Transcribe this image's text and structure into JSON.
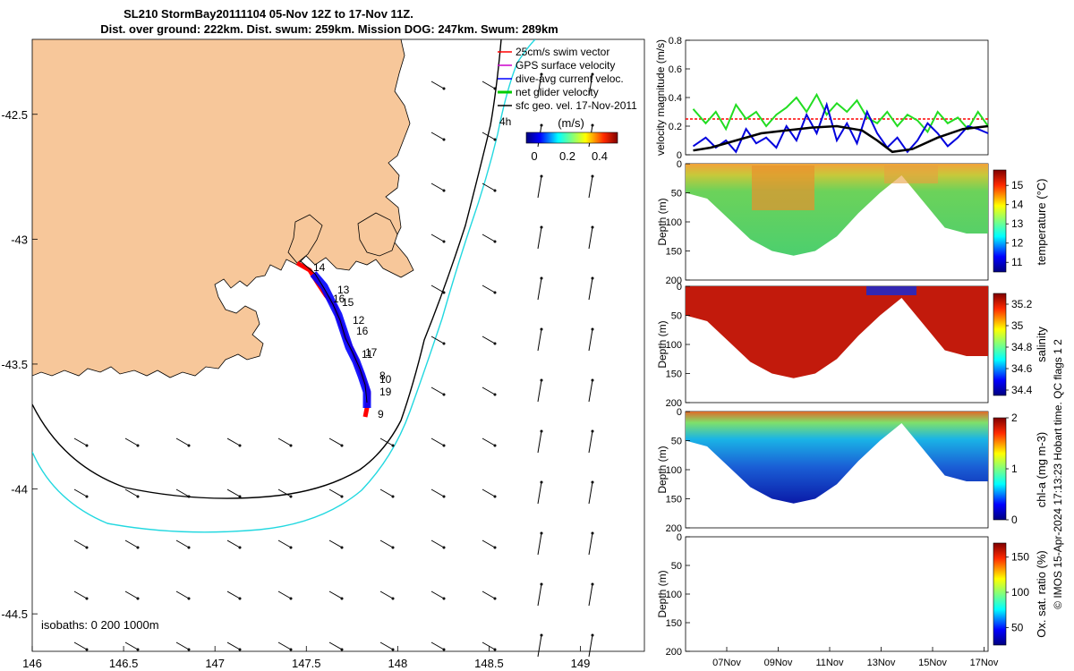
{
  "title": {
    "line1": "SL210 StormBay20111104 05-Nov 12Z to 17-Nov 11Z.",
    "line2": "Dist. over ground: 222km. Dist. swum: 259km. Mission DOG: 247km. Swum: 289km"
  },
  "legend": {
    "items": [
      "25cm/s swim vector",
      "GPS surface velocity",
      "dive-avg current veloc.",
      "net glider velocity",
      "sfc geo. vel. 17-Nov-2011"
    ],
    "colors": [
      "#ff0000",
      "#cc00cc",
      "#0000ff",
      "#00cc00",
      "#000000"
    ],
    "colorbar_unit": "(m/s)",
    "colorbar_ticks": [
      "0",
      "0.2",
      "0.4"
    ],
    "tide_label": "4h",
    "isobath_label": "isobaths: 0   200  1000m"
  },
  "map": {
    "x_ticks": [
      "146",
      "146.5",
      "147",
      "147.5",
      "148",
      "148.5",
      "149"
    ],
    "y_ticks": [
      "-42.5",
      "-43",
      "-43.5",
      "-44",
      "-44.5"
    ],
    "x_range": [
      146,
      149.35
    ],
    "y_range": [
      -44.65,
      -42.2
    ],
    "track_labels": [
      "14",
      "13",
      "15",
      "16",
      "12",
      "16",
      "17",
      "11",
      "8",
      "10",
      "19",
      "9"
    ],
    "land_color": "#f7c79a",
    "isobath_200_color": "#000000",
    "isobath_1000_color": "#22d8e0"
  },
  "chart_data": [
    {
      "type": "line",
      "panel": "velocity",
      "ylabel": "velocity magnitude (m/s)",
      "ylim": [
        0,
        0.8
      ],
      "y_ticks": [
        "0",
        "0.2",
        "0.4",
        "0.6",
        "0.8"
      ],
      "x_range_days": [
        0,
        12
      ],
      "series": [
        {
          "name": "swim vector (25cm/s)",
          "color": "#ff0000",
          "x": [
            0,
            12
          ],
          "y": [
            0.25,
            0.25
          ]
        },
        {
          "name": "net glider velocity",
          "color": "#22dd22",
          "x": [
            0.3,
            0.8,
            1.2,
            1.6,
            2.0,
            2.4,
            2.8,
            3.2,
            3.6,
            4.0,
            4.4,
            4.8,
            5.2,
            5.6,
            6.0,
            6.4,
            6.8,
            7.2,
            7.6,
            8.0,
            8.4,
            8.8,
            9.2,
            9.6,
            10.0,
            10.4,
            10.8,
            11.2,
            11.6,
            12.0
          ],
          "y": [
            0.32,
            0.22,
            0.3,
            0.18,
            0.35,
            0.25,
            0.3,
            0.2,
            0.28,
            0.33,
            0.4,
            0.3,
            0.42,
            0.28,
            0.36,
            0.3,
            0.38,
            0.26,
            0.22,
            0.3,
            0.2,
            0.28,
            0.24,
            0.16,
            0.3,
            0.22,
            0.26,
            0.18,
            0.3,
            0.2
          ]
        },
        {
          "name": "dive-avg current veloc.",
          "color": "#0000dd",
          "x": [
            0.3,
            0.8,
            1.2,
            1.6,
            2.0,
            2.4,
            2.8,
            3.2,
            3.6,
            4.0,
            4.4,
            4.8,
            5.2,
            5.6,
            6.0,
            6.4,
            6.8,
            7.2,
            7.6,
            8.0,
            8.4,
            8.8,
            9.2,
            9.6,
            10.0,
            10.4,
            10.8,
            11.2,
            11.6,
            12.0
          ],
          "y": [
            0.06,
            0.12,
            0.05,
            0.1,
            0.02,
            0.18,
            0.08,
            0.12,
            0.05,
            0.2,
            0.1,
            0.28,
            0.15,
            0.35,
            0.1,
            0.22,
            0.08,
            0.3,
            0.15,
            0.05,
            0.12,
            0.02,
            0.1,
            0.22,
            0.15,
            0.06,
            0.12,
            0.2,
            0.18,
            0.15
          ]
        },
        {
          "name": "tidal/geo velocity",
          "color": "#000000",
          "x": [
            0.3,
            1,
            2,
            3,
            4,
            5,
            6,
            7,
            7.6,
            8.2,
            9,
            10,
            11,
            12
          ],
          "y": [
            0.03,
            0.05,
            0.1,
            0.15,
            0.17,
            0.19,
            0.2,
            0.17,
            0.1,
            0.02,
            0.04,
            0.12,
            0.18,
            0.2
          ]
        }
      ]
    },
    {
      "type": "heatmap",
      "panel": "temperature",
      "ylabel": "Depth (m)",
      "colorbar_label": "temperature (°C)",
      "colorbar_ticks": [
        "15",
        "14",
        "13",
        "12",
        "11"
      ],
      "clim": [
        10.5,
        15.8
      ],
      "depth_ticks": [
        "0",
        "50",
        "100",
        "150",
        "200"
      ],
      "bottom_depth_profile_m": [
        50,
        60,
        95,
        130,
        150,
        158,
        150,
        125,
        85,
        50,
        20,
        65,
        110,
        120,
        120
      ]
    },
    {
      "type": "heatmap",
      "panel": "salinity",
      "ylabel": "Depth (m)",
      "colorbar_label": "salinity",
      "colorbar_ticks": [
        "35.2",
        "35",
        "34.8",
        "34.6",
        "34.4"
      ],
      "clim": [
        34.35,
        35.3
      ],
      "depth_ticks": [
        "0",
        "50",
        "100",
        "150",
        "200"
      ],
      "bottom_depth_profile_m": [
        50,
        60,
        95,
        130,
        150,
        158,
        150,
        125,
        85,
        50,
        20,
        65,
        110,
        120,
        120
      ]
    },
    {
      "type": "heatmap",
      "panel": "chl-a",
      "ylabel": "Depth (m)",
      "colorbar_label": "chl-a (mg m-3)",
      "colorbar_ticks": [
        "2",
        "1",
        "0"
      ],
      "clim": [
        0,
        2
      ],
      "depth_ticks": [
        "0",
        "50",
        "100",
        "150",
        "200"
      ],
      "bottom_depth_profile_m": [
        50,
        60,
        95,
        130,
        150,
        158,
        150,
        125,
        85,
        50,
        20,
        65,
        110,
        120,
        120
      ]
    },
    {
      "type": "heatmap",
      "panel": "oxygen",
      "ylabel": "Depth (m)",
      "colorbar_label": "Ox. sat. ratio (%)",
      "colorbar_ticks": [
        "150",
        "100",
        "50"
      ],
      "clim": [
        25,
        170
      ],
      "depth_ticks": [
        "0",
        "50",
        "100",
        "150",
        "200"
      ],
      "x_ticks": [
        "07Nov",
        "09Nov",
        "11Nov",
        "13Nov",
        "15Nov",
        "17Nov"
      ]
    }
  ],
  "footer_credit": "© IMOS 15-Apr-2024 17:13:23 Hobart time. QC flags 1  2"
}
